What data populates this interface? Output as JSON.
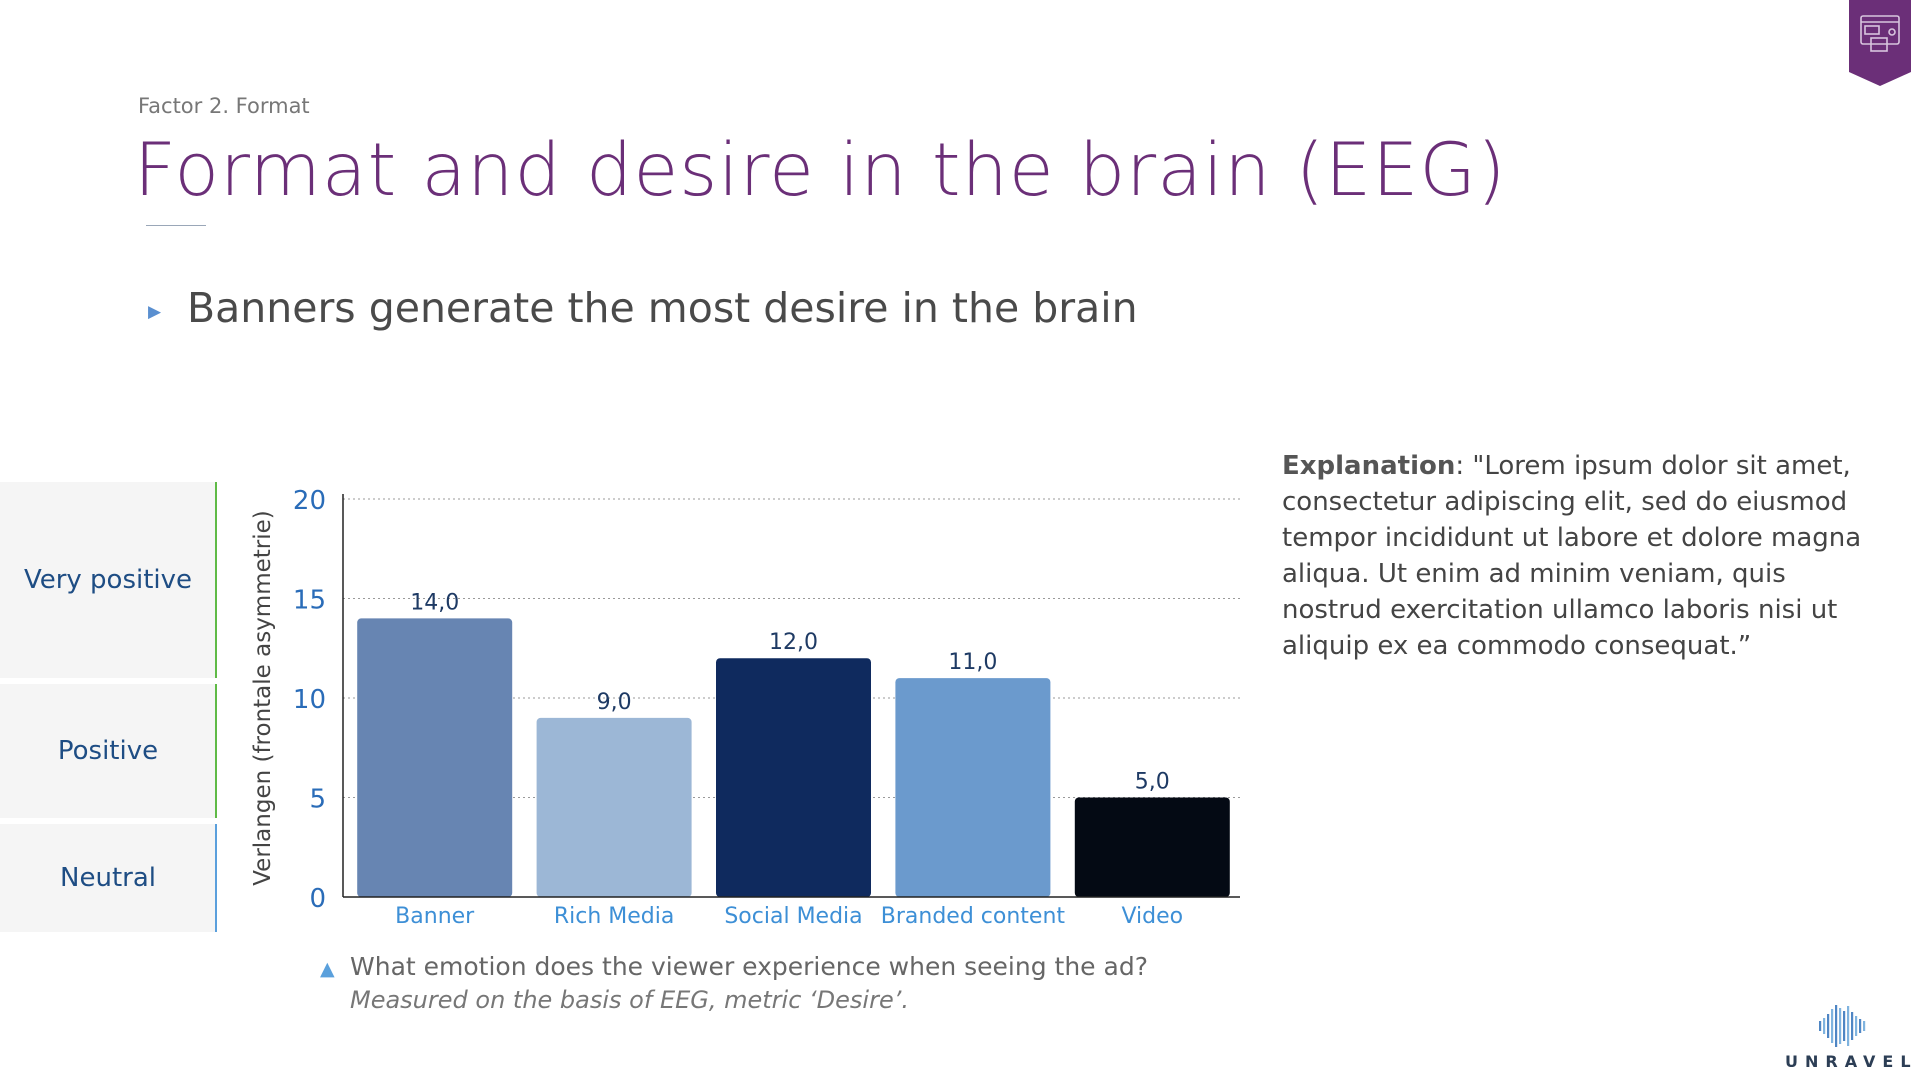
{
  "header": {
    "breadcrumb": "Factor 2. Format",
    "title": "Format and desire in the brain (EEG)",
    "bullet": "Banners generate the most desire in the brain"
  },
  "badge": {
    "icon": "layout-template-icon",
    "color": "#6b2f78"
  },
  "scale": {
    "very_positive": "Very positive",
    "positive": "Positive",
    "neutral": "Neutral",
    "colors": {
      "very_positive": "#5fba46",
      "positive": "#5fba46",
      "neutral": "#5a9fdc"
    }
  },
  "chart_data": {
    "type": "bar",
    "categories": [
      "Banner",
      "Rich Media",
      "Social Media",
      "Branded content",
      "Video"
    ],
    "values": [
      14.0,
      9.0,
      12.0,
      11.0,
      5.0
    ],
    "data_labels": [
      "14,0",
      "9,0",
      "12,0",
      "11,0",
      "5,0"
    ],
    "bar_colors": [
      "#6785b2",
      "#9cb7d6",
      "#0f2a5e",
      "#6b9acd",
      "#040a14"
    ],
    "ylabel": "Verlangen (frontale asymmetrie)",
    "ylim": [
      0,
      20
    ],
    "yticks": [
      0,
      5,
      10,
      15,
      20
    ],
    "grid": true,
    "tick_color": "#2a6cb8",
    "category_label_color": "#3d8fd6"
  },
  "explanation": {
    "label": "Explanation",
    "text": ": \"Lorem ipsum dolor sit amet, consectetur adipiscing elit, sed do eiusmod tempor incididunt ut labore et dolore magna aliqua. Ut enim ad minim veniam, quis nostrud exercitation ullamco laboris nisi ut aliquip ex ea commodo consequat.”"
  },
  "note": {
    "question": "What emotion does the viewer experience when seeing the ad?",
    "method": "Measured on the basis of EEG, metric ‘Desire’."
  },
  "logo": {
    "text": "UNRAVEL",
    "icon": "soundwave-icon"
  }
}
